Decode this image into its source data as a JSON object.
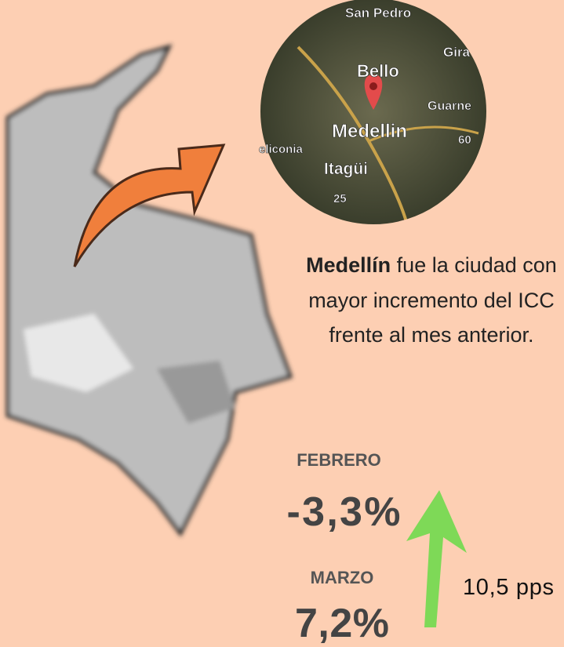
{
  "inset_map": {
    "labels": [
      "San Pedro",
      "Bello",
      "Gira",
      "Guarne",
      "Medellin",
      "eliconia",
      "Itagüi",
      "60",
      "25"
    ]
  },
  "description": {
    "highlight": "Medellín",
    "text": " fue la ciudad con mayor incremento del ICC frente al mes anterior."
  },
  "stats": [
    {
      "label": "FEBRERO",
      "value": "-3,3%"
    },
    {
      "label": "MARZO",
      "value": "7,2%"
    }
  ],
  "change": "10,5 pps"
}
